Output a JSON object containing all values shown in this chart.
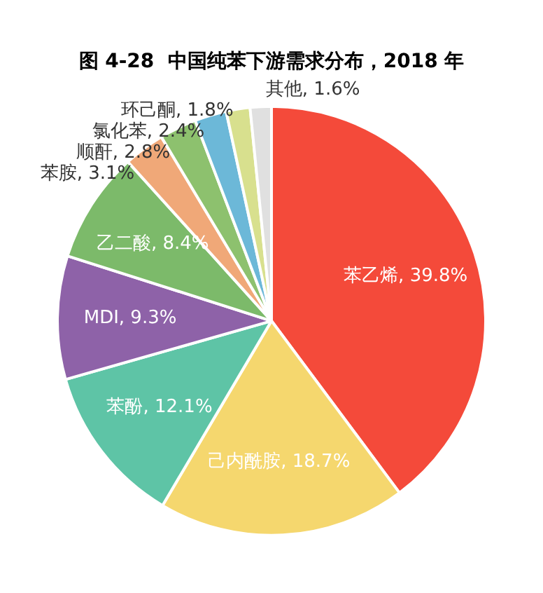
{
  "chart_data": {
    "type": "pie",
    "title": "图 4-28  中国纯苯下游需求分布，2018 年",
    "categories": [
      "苯乙烯",
      "己内酰胺",
      "苯酚",
      "MDI",
      "乙二酸",
      "苯胺",
      "顺酐",
      "氯化苯",
      "环己酮",
      "其他"
    ],
    "values": [
      39.8,
      18.7,
      12.1,
      9.3,
      8.4,
      3.1,
      2.8,
      2.4,
      1.8,
      1.6
    ],
    "value_labels": [
      "39.8%",
      "18.7%",
      "12.1%",
      "9.3%",
      "8.4%",
      "3.1%",
      "2.8%",
      "2.4%",
      "1.8%",
      "1.6%"
    ],
    "colors": [
      "#f44a3a",
      "#f5d76e",
      "#5ec4a6",
      "#8e62a8",
      "#7cba6a",
      "#f0a878",
      "#8dc16e",
      "#6cb8d8",
      "#d8e08e",
      "#e0e0e0"
    ],
    "legend": false
  }
}
